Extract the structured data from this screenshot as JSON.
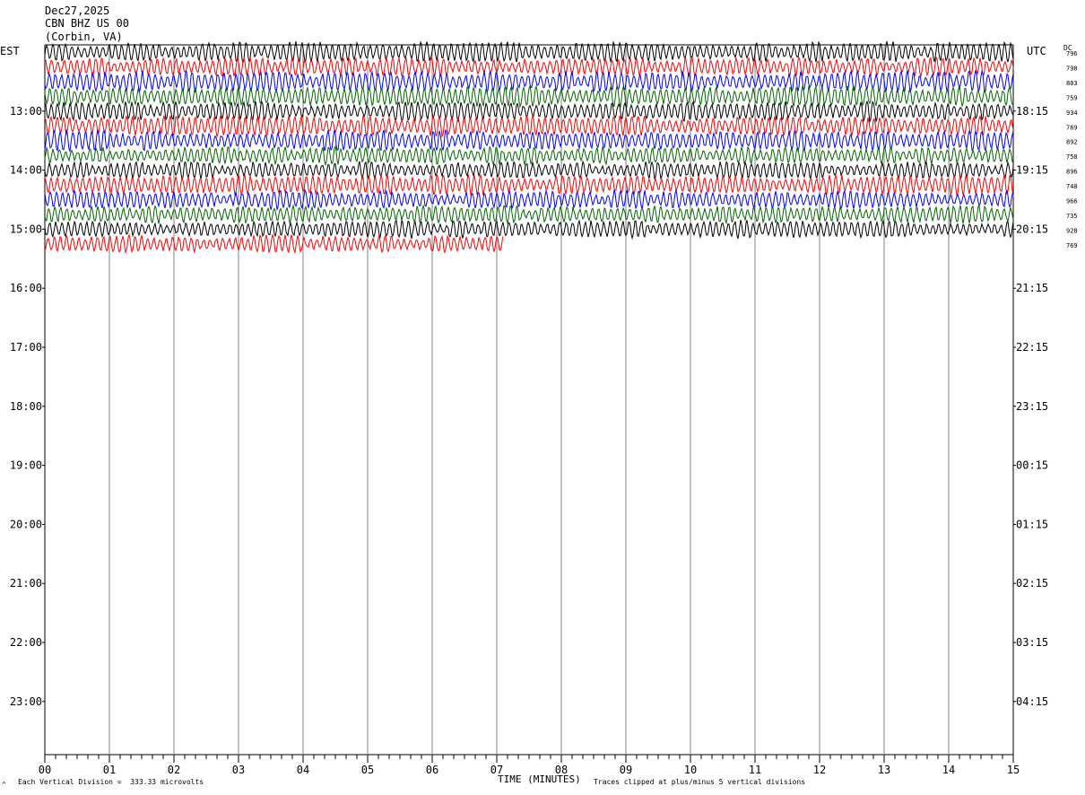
{
  "header": {
    "date": "Dec27,2025",
    "station": "CBN BHZ US 00",
    "location": "(Corbin, VA)"
  },
  "left_timezone": "EST",
  "right_timezone": "UTC",
  "dc_label": "DC",
  "footer": {
    "scale_note": "Each Vertical Division =  333.33 microvolts",
    "clip_note": "Traces clipped at plus/minus 5 vertical divisions",
    "corner_mark": "^"
  },
  "chart_data": {
    "type": "line",
    "xlabel": "TIME (MINUTES)",
    "x_ticks": [
      "00",
      "01",
      "02",
      "03",
      "04",
      "05",
      "06",
      "07",
      "08",
      "09",
      "10",
      "11",
      "12",
      "13",
      "14",
      "15"
    ],
    "xlim": [
      0,
      15
    ],
    "left_hour_labels": [
      "13:00",
      "14:00",
      "15:00",
      "16:00",
      "17:00",
      "18:00",
      "19:00",
      "20:00",
      "21:00",
      "22:00",
      "23:00"
    ],
    "right_hour_labels": [
      "18:15",
      "19:15",
      "20:15",
      "21:15",
      "22:15",
      "23:15",
      "00:15",
      "01:15",
      "02:15",
      "03:15",
      "04:15"
    ],
    "trace_colors": [
      "#000000",
      "#ff0000",
      "#0000ff",
      "#006600"
    ],
    "dc_offsets": [
      "796",
      "798",
      "803",
      "759",
      "934",
      "769",
      "892",
      "758",
      "896",
      "748",
      "966",
      "735",
      "928",
      "769"
    ],
    "rows_total": 48,
    "rows_recorded": 14,
    "last_row_minutes": 7.1,
    "grid": "vertical lines each minute",
    "amplitude_clip_divisions": 5
  }
}
